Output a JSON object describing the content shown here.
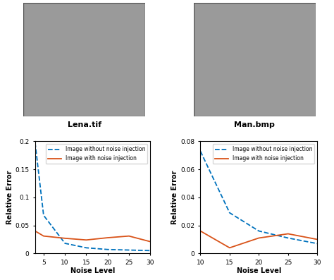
{
  "images": [
    {
      "caption": "Lena.tif"
    },
    {
      "caption": "Man.bmp"
    }
  ],
  "chart_data": [
    {
      "type": "line",
      "x_label": "Noise Level",
      "y_label": "Relative Error",
      "x": [
        3,
        5,
        10,
        15,
        20,
        25,
        30
      ],
      "series": [
        {
          "name": "Image without noise injection",
          "color": "#0072bd",
          "line_style": "dashed",
          "values": [
            0.198,
            0.068,
            0.018,
            0.01,
            0.007,
            0.006,
            0.005
          ]
        },
        {
          "name": "Image with noise injection",
          "color": "#d95319",
          "line_style": "solid",
          "values": [
            0.04,
            0.031,
            0.027,
            0.024,
            0.028,
            0.031,
            0.021
          ]
        }
      ],
      "xlim": [
        3,
        30
      ],
      "xticks": [
        5,
        10,
        15,
        20,
        25,
        30
      ],
      "ylim": [
        0,
        0.2
      ],
      "yticks": [
        0,
        0.05,
        0.1,
        0.15,
        0.2
      ],
      "grid": false,
      "legend": "upper right"
    },
    {
      "type": "line",
      "x_label": "Noise Level",
      "y_label": "Relative Error",
      "x": [
        10,
        15,
        20,
        25,
        30
      ],
      "series": [
        {
          "name": "Image without noise injection",
          "color": "#0072bd",
          "line_style": "dashed",
          "values": [
            0.073,
            0.029,
            0.016,
            0.011,
            0.007
          ]
        },
        {
          "name": "Image with noise injection",
          "color": "#d95319",
          "line_style": "solid",
          "values": [
            0.016,
            0.004,
            0.011,
            0.014,
            0.01
          ]
        }
      ],
      "xlim": [
        10,
        30
      ],
      "xticks": [
        10,
        15,
        20,
        25,
        30
      ],
      "ylim": [
        0,
        0.08
      ],
      "yticks": [
        0,
        0.02,
        0.04,
        0.06,
        0.08
      ],
      "grid": false,
      "legend": "upper right"
    }
  ]
}
